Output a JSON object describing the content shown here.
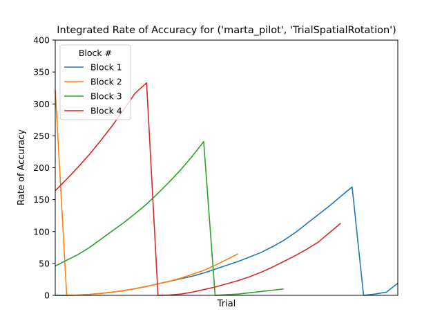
{
  "chart_data": {
    "type": "line",
    "title": "Integrated Rate of Accuracy for ('marta_pilot', 'TrialSpatialRotation')",
    "xlabel": "Trial",
    "ylabel": "Rate of Accuracy",
    "ylim": [
      0,
      400
    ],
    "xlim": [
      0,
      30
    ],
    "yticks": [
      "0",
      "50",
      "100",
      "150",
      "200",
      "250",
      "300",
      "350",
      "400"
    ],
    "grid": false,
    "legend": {
      "title": "Block #",
      "placement": "top-left"
    },
    "series": [
      {
        "name": "Block 1",
        "color": "#1f77b4",
        "x": [
          0,
          1,
          2,
          3,
          4,
          5,
          6,
          7,
          8,
          9,
          10,
          11,
          12,
          13,
          14,
          15,
          16,
          17,
          18,
          19,
          20,
          21,
          22,
          23,
          24,
          25,
          26,
          27,
          28,
          29,
          30
        ],
        "y": [
          0,
          0,
          0.4,
          1.5,
          3,
          5,
          7.5,
          10.5,
          14,
          18,
          22,
          26,
          30,
          35,
          41,
          47,
          53,
          60,
          67,
          76,
          86,
          98,
          112,
          126,
          140,
          155,
          170,
          0,
          2,
          5,
          19
        ]
      },
      {
        "name": "Block 2",
        "color": "#ff7f0e",
        "x": [
          0,
          1,
          2,
          3,
          4,
          5,
          6,
          7,
          8,
          9,
          10,
          11,
          12,
          13,
          14,
          15,
          16
        ],
        "y": [
          322,
          0,
          0.5,
          1.5,
          3,
          5,
          7.5,
          10.5,
          14,
          18,
          22,
          27,
          33,
          39,
          47,
          56,
          65
        ]
      },
      {
        "name": "Block 3",
        "color": "#2ca02c",
        "x": [
          0,
          1,
          2,
          3,
          4,
          5,
          6,
          7,
          8,
          9,
          10,
          11,
          12,
          13,
          14,
          15,
          16,
          17,
          18,
          19,
          20
        ],
        "y": [
          46,
          55,
          64,
          75,
          88,
          101,
          114,
          128,
          143,
          160,
          178,
          197,
          218,
          241,
          0,
          1,
          2,
          4,
          6,
          8,
          10
        ]
      },
      {
        "name": "Block 4",
        "color": "#d62728",
        "x": [
          0,
          1,
          2,
          3,
          4,
          5,
          6,
          7,
          8,
          9,
          10,
          11,
          12,
          13,
          14,
          15,
          16,
          17,
          18,
          19,
          20,
          21,
          22,
          23,
          24,
          25
        ],
        "y": [
          164,
          182,
          201,
          221,
          243,
          266,
          291,
          317,
          333,
          0,
          0.5,
          2,
          5,
          9,
          13,
          18,
          23,
          29,
          36,
          44,
          53,
          62,
          72,
          83,
          98,
          113
        ]
      }
    ]
  }
}
